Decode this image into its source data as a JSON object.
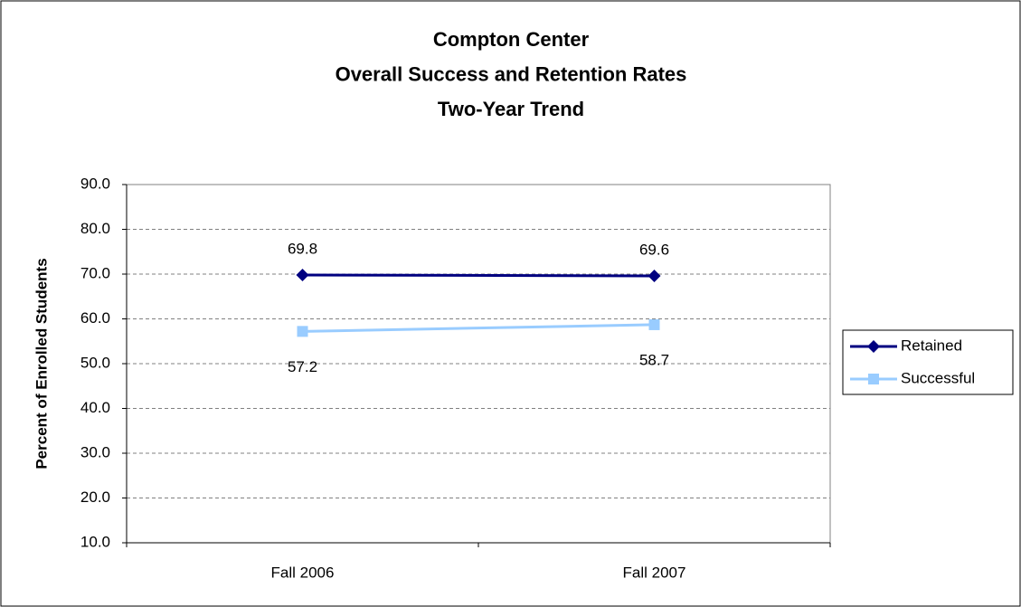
{
  "chart_data": {
    "type": "line",
    "title": [
      "Compton Center",
      "Overall Success and Retention Rates",
      "Two-Year Trend"
    ],
    "y_label": "Percent of Enrolled Students",
    "categories": [
      "Fall 2006",
      "Fall 2007"
    ],
    "series": [
      {
        "name": "Retained",
        "color": "#000080",
        "marker": "diamond",
        "label_position": "above",
        "values": [
          69.8,
          69.6
        ]
      },
      {
        "name": "Successful",
        "color": "#99ccff",
        "marker": "square",
        "label_position": "below",
        "values": [
          57.2,
          58.7
        ]
      }
    ],
    "ylim": [
      10,
      90
    ],
    "yticks": [
      {
        "value": 10,
        "label": "10.0"
      },
      {
        "value": 20,
        "label": "20.0"
      },
      {
        "value": 30,
        "label": "30.0"
      },
      {
        "value": 40,
        "label": "40.0"
      },
      {
        "value": 50,
        "label": "50.0"
      },
      {
        "value": 60,
        "label": "60.0"
      },
      {
        "value": 70,
        "label": "70.0"
      },
      {
        "value": 80,
        "label": "80.0"
      },
      {
        "value": 90,
        "label": "90.0"
      }
    ],
    "grid": true,
    "legend": "right"
  }
}
